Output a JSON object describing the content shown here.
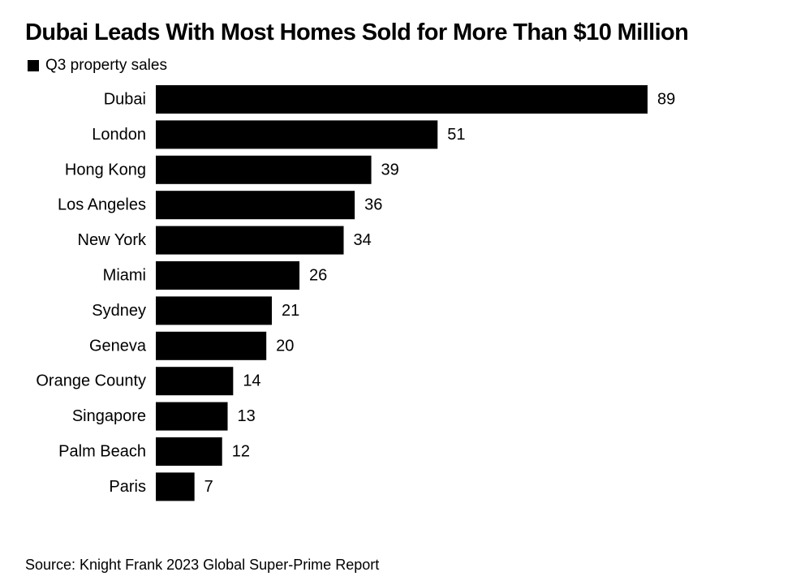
{
  "chart_data": {
    "type": "bar",
    "orientation": "horizontal",
    "title": "Dubai Leads With Most Homes Sold for More Than $10 Million",
    "legend": [
      "Q3 property sales"
    ],
    "legend_position": "top-left",
    "categories": [
      "Dubai",
      "London",
      "Hong Kong",
      "Los Angeles",
      "New York",
      "Miami",
      "Sydney",
      "Geneva",
      "Orange County",
      "Singapore",
      "Palm Beach",
      "Paris"
    ],
    "series": [
      {
        "name": "Q3 property sales",
        "values": [
          89,
          51,
          39,
          36,
          34,
          26,
          21,
          20,
          14,
          13,
          12,
          7
        ],
        "color": "#000000"
      }
    ],
    "xlabel": "",
    "ylabel": "",
    "xlim": [
      0,
      89
    ],
    "grid": false,
    "data_labels": true,
    "source": "Source: Knight Frank 2023 Global Super-Prime Report"
  }
}
